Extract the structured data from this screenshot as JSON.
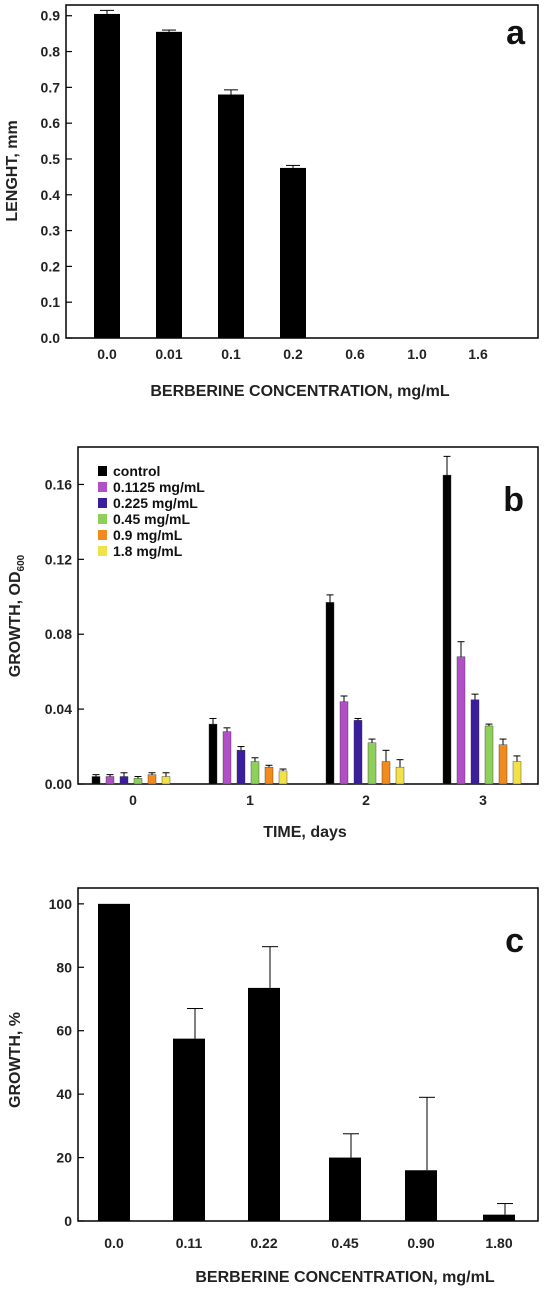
{
  "chart_data": [
    {
      "type": "bar",
      "panel_letter": "a",
      "xlabel": "BERBERINE CONCENTRATION, mg/mL",
      "ylabel": "LENGHT, mm",
      "categories": [
        "0.0",
        "0.01",
        "0.1",
        "0.2",
        "0.6",
        "1.0",
        "1.6"
      ],
      "values": [
        0.905,
        0.855,
        0.68,
        0.475,
        0,
        0,
        0
      ],
      "errors": [
        0.01,
        0.005,
        0.013,
        0.007,
        0,
        0,
        0
      ],
      "ylim": [
        0,
        0.93
      ],
      "yticks": [
        "0.0",
        "0.1",
        "0.2",
        "0.3",
        "0.4",
        "0.5",
        "0.6",
        "0.7",
        "0.8",
        "0.9"
      ],
      "color": "#000000"
    },
    {
      "type": "bar",
      "panel_letter": "b",
      "xlabel": "TIME, days",
      "ylabel": "GROWTH, OD",
      "ylabel_sub": "600",
      "categories": [
        "0",
        "1",
        "2",
        "3"
      ],
      "ylim": [
        0,
        0.18
      ],
      "yticks": [
        "0.00",
        "0.04",
        "0.08",
        "0.12",
        "0.16"
      ],
      "legend_position": "top-left",
      "series": [
        {
          "name": "control",
          "color": "#000000",
          "values": [
            0.004,
            0.032,
            0.097,
            0.165
          ],
          "errors": [
            0.001,
            0.003,
            0.004,
            0.01
          ]
        },
        {
          "name": "0.1125 mg/mL",
          "color": "#b04fc6",
          "values": [
            0.004,
            0.028,
            0.044,
            0.068
          ],
          "errors": [
            0.001,
            0.002,
            0.003,
            0.008
          ]
        },
        {
          "name": "0.225 mg/mL",
          "color": "#3a1e9e",
          "values": [
            0.004,
            0.018,
            0.034,
            0.045
          ],
          "errors": [
            0.002,
            0.002,
            0.001,
            0.003
          ]
        },
        {
          "name": "0.45 mg/mL",
          "color": "#8ed05a",
          "values": [
            0.003,
            0.012,
            0.022,
            0.031
          ],
          "errors": [
            0.001,
            0.002,
            0.002,
            0.001
          ]
        },
        {
          "name": "0.9 mg/mL",
          "color": "#f28a1c",
          "values": [
            0.005,
            0.009,
            0.012,
            0.021
          ],
          "errors": [
            0.001,
            0.001,
            0.006,
            0.003
          ]
        },
        {
          "name": "1.8 mg/mL",
          "color": "#f2e24a",
          "values": [
            0.004,
            0.007,
            0.009,
            0.012
          ],
          "errors": [
            0.002,
            0.001,
            0.004,
            0.003
          ]
        }
      ]
    },
    {
      "type": "bar",
      "panel_letter": "c",
      "xlabel": "BERBERINE CONCENTRATION, mg/mL",
      "ylabel": "GROWTH, %",
      "categories": [
        "0.0",
        "0.11",
        "0.22",
        "0.45",
        "0.90",
        "1.80"
      ],
      "values": [
        100,
        57.5,
        73.5,
        20,
        16,
        2
      ],
      "errors": [
        0,
        9.5,
        13,
        7.5,
        23,
        3.5
      ],
      "ylim": [
        0,
        105
      ],
      "yticks": [
        "0",
        "20",
        "40",
        "60",
        "80",
        "100"
      ],
      "color": "#000000"
    }
  ]
}
